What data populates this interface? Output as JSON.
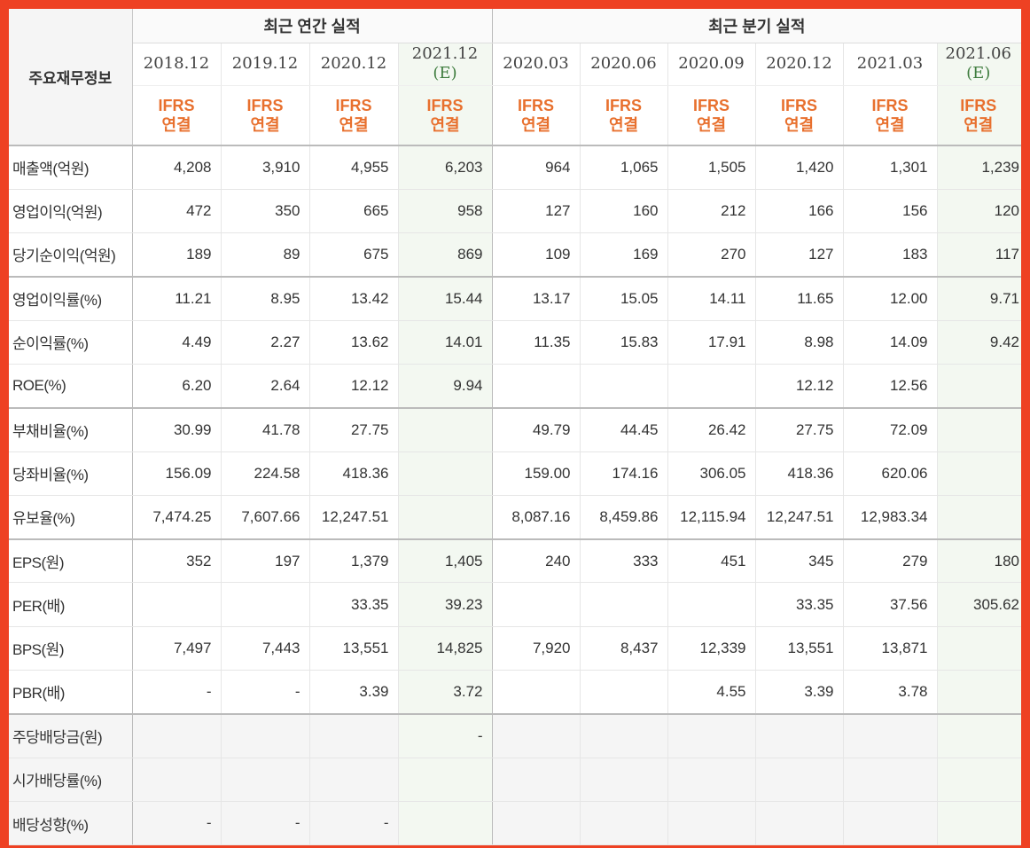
{
  "header": {
    "corner_label": "주요재무정보",
    "annual_group": "최근 연간 실적",
    "quarterly_group": "최근 분기 실적",
    "ifrs_line1": "IFRS",
    "ifrs_line2": "연결",
    "periods": [
      {
        "label": "2018.12",
        "est": ""
      },
      {
        "label": "2019.12",
        "est": ""
      },
      {
        "label": "2020.12",
        "est": ""
      },
      {
        "label": "2021.12",
        "est": "(E)"
      },
      {
        "label": "2020.03",
        "est": ""
      },
      {
        "label": "2020.06",
        "est": ""
      },
      {
        "label": "2020.09",
        "est": ""
      },
      {
        "label": "2020.12",
        "est": ""
      },
      {
        "label": "2021.03",
        "est": ""
      },
      {
        "label": "2021.06",
        "est": "(E)"
      }
    ]
  },
  "rows": [
    {
      "label": "매출액(억원)",
      "values": [
        "4,208",
        "3,910",
        "4,955",
        "6,203",
        "964",
        "1,065",
        "1,505",
        "1,420",
        "1,301",
        "1,239"
      ]
    },
    {
      "label": "영업이익(억원)",
      "values": [
        "472",
        "350",
        "665",
        "958",
        "127",
        "160",
        "212",
        "166",
        "156",
        "120"
      ]
    },
    {
      "label": "당기순이익(억원)",
      "values": [
        "189",
        "89",
        "675",
        "869",
        "109",
        "169",
        "270",
        "127",
        "183",
        "117"
      ]
    },
    {
      "label": "영업이익률(%)",
      "values": [
        "11.21",
        "8.95",
        "13.42",
        "15.44",
        "13.17",
        "15.05",
        "14.11",
        "11.65",
        "12.00",
        "9.71"
      ]
    },
    {
      "label": "순이익률(%)",
      "values": [
        "4.49",
        "2.27",
        "13.62",
        "14.01",
        "11.35",
        "15.83",
        "17.91",
        "8.98",
        "14.09",
        "9.42"
      ]
    },
    {
      "label": "ROE(%)",
      "values": [
        "6.20",
        "2.64",
        "12.12",
        "9.94",
        "",
        "",
        "",
        "12.12",
        "12.56",
        ""
      ]
    },
    {
      "label": "부채비율(%)",
      "values": [
        "30.99",
        "41.78",
        "27.75",
        "",
        "49.79",
        "44.45",
        "26.42",
        "27.75",
        "72.09",
        ""
      ]
    },
    {
      "label": "당좌비율(%)",
      "values": [
        "156.09",
        "224.58",
        "418.36",
        "",
        "159.00",
        "174.16",
        "306.05",
        "418.36",
        "620.06",
        ""
      ]
    },
    {
      "label": "유보율(%)",
      "values": [
        "7,474.25",
        "7,607.66",
        "12,247.51",
        "",
        "8,087.16",
        "8,459.86",
        "12,115.94",
        "12,247.51",
        "12,983.34",
        ""
      ]
    },
    {
      "label": "EPS(원)",
      "values": [
        "352",
        "197",
        "1,379",
        "1,405",
        "240",
        "333",
        "451",
        "345",
        "279",
        "180"
      ]
    },
    {
      "label": "PER(배)",
      "values": [
        "",
        "",
        "33.35",
        "39.23",
        "",
        "",
        "",
        "33.35",
        "37.56",
        "305.62"
      ]
    },
    {
      "label": "BPS(원)",
      "values": [
        "7,497",
        "7,443",
        "13,551",
        "14,825",
        "7,920",
        "8,437",
        "12,339",
        "13,551",
        "13,871",
        ""
      ]
    },
    {
      "label": "PBR(배)",
      "values": [
        "-",
        "-",
        "3.39",
        "3.72",
        "",
        "",
        "4.55",
        "3.39",
        "3.78",
        ""
      ]
    },
    {
      "label": "주당배당금(원)",
      "values": [
        "",
        "",
        "",
        "-",
        "",
        "",
        "",
        "",
        "",
        ""
      ]
    },
    {
      "label": "시가배당률(%)",
      "values": [
        "",
        "",
        "",
        "",
        "",
        "",
        "",
        "",
        "",
        ""
      ]
    },
    {
      "label": "배당성향(%)",
      "values": [
        "-",
        "-",
        "-",
        "",
        "",
        "",
        "",
        "",
        "",
        ""
      ]
    }
  ]
}
